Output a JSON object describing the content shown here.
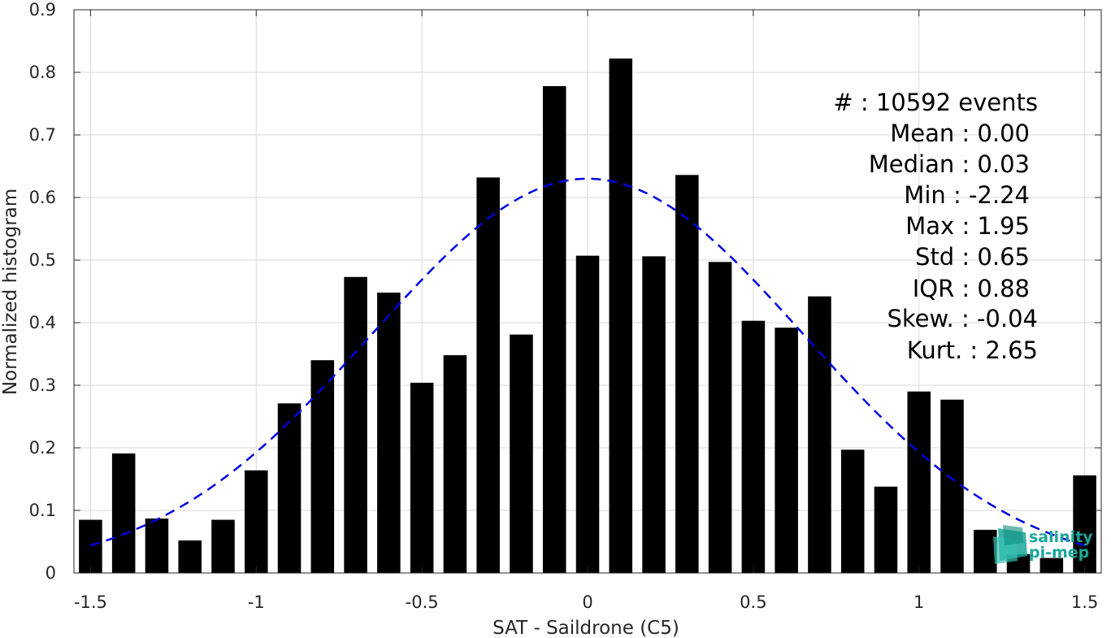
{
  "chart_data": {
    "type": "bar",
    "xlabel": "SAT - Saildrone (C5)",
    "ylabel": "Normalized histogram",
    "xlim": [
      -1.55,
      1.55
    ],
    "ylim": [
      0,
      0.9
    ],
    "grid": true,
    "x_ticks": [
      "-1.5",
      "-1",
      "-0.5",
      "0",
      "0.5",
      "1",
      "1.5"
    ],
    "y_ticks": [
      "0",
      "0.1",
      "0.2",
      "0.3",
      "0.4",
      "0.5",
      "0.6",
      "0.7",
      "0.8",
      "0.9"
    ],
    "bar_width": 0.07,
    "series": [
      {
        "x": [
          -1.5,
          -1.4,
          -1.3,
          -1.2,
          -1.1,
          -1.0,
          -0.9,
          -0.8,
          -0.7,
          -0.6,
          -0.5,
          -0.4,
          -0.3,
          -0.2,
          -0.1,
          0.0,
          0.1,
          0.2,
          0.3,
          0.4,
          0.5,
          0.6,
          0.7,
          0.8,
          0.9,
          1.0,
          1.1,
          1.2,
          1.3,
          1.4,
          1.5
        ],
        "values": [
          0.085,
          0.191,
          0.087,
          0.052,
          0.085,
          0.164,
          0.271,
          0.34,
          0.473,
          0.448,
          0.304,
          0.348,
          0.632,
          0.381,
          0.778,
          0.507,
          0.822,
          0.506,
          0.636,
          0.497,
          0.403,
          0.392,
          0.442,
          0.197,
          0.138,
          0.29,
          0.277,
          0.069,
          0.03,
          0.024,
          0.156
        ],
        "color": "#000000"
      }
    ],
    "fit_curve": {
      "style": "dashed",
      "color": "#0000e0",
      "mean": 0.0,
      "std": 0.65,
      "peak": 0.63,
      "x_range": [
        -1.5,
        1.5
      ]
    },
    "stats": [
      "#  : 10592 events",
      "Mean : 0.00",
      "Median : 0.03",
      "Min : -2.24",
      "Max : 1.95",
      "Std : 0.65",
      "IQR : 0.88",
      "Skew. : -0.04",
      "Kurt. : 2.65"
    ]
  },
  "logo": {
    "line1": "salinity",
    "line2": "pi-mep",
    "color": "#1aa79a"
  }
}
